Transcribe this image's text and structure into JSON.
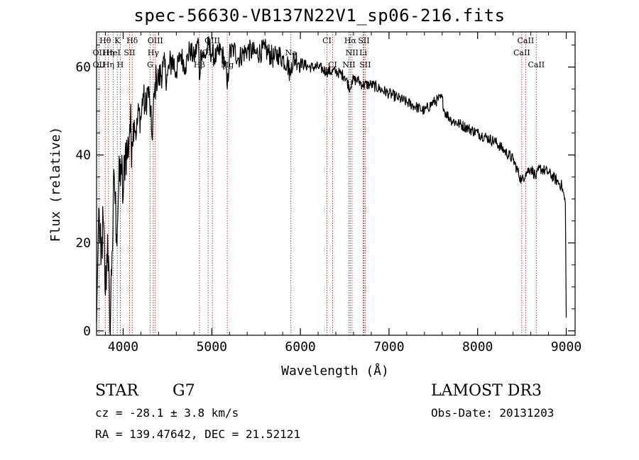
{
  "title": "spec-56630-VB137N22V1_sp06-216.fits",
  "object_class": "STAR",
  "subclass": "G7",
  "survey": "LAMOST DR3",
  "redshift_line": "cz = -28.1 ± 3.8 km/s",
  "obs_date_line": "Obs-Date: 20131203",
  "coord_line": "RA = 139.47642, DEC =  21.52121",
  "colors": {
    "spectrum": "#000000",
    "lines": "#b22222",
    "axis": "#000000"
  },
  "chart_data": {
    "type": "line",
    "title": "spec-56630-VB137N22V1_sp06-216.fits",
    "xlabel": "Wavelength (Å)",
    "ylabel": "Flux (relative)",
    "xlim": [
      3700,
      9100
    ],
    "ylim": [
      -1,
      68
    ],
    "x_ticks": [
      4000,
      5000,
      6000,
      7000,
      8000,
      9000
    ],
    "y_ticks": [
      0,
      20,
      40,
      60
    ],
    "grid": false,
    "series": [
      {
        "name": "flux",
        "points": [
          [
            3700,
            2
          ],
          [
            3725,
            28
          ],
          [
            3750,
            15
          ],
          [
            3775,
            25
          ],
          [
            3800,
            8
          ],
          [
            3825,
            22
          ],
          [
            3850,
            0
          ],
          [
            3875,
            18
          ],
          [
            3900,
            35
          ],
          [
            3925,
            22
          ],
          [
            3950,
            32
          ],
          [
            3975,
            38
          ],
          [
            4000,
            30
          ],
          [
            4025,
            42
          ],
          [
            4050,
            40
          ],
          [
            4075,
            47
          ],
          [
            4100,
            43
          ],
          [
            4125,
            48
          ],
          [
            4150,
            45
          ],
          [
            4175,
            50
          ],
          [
            4200,
            48
          ],
          [
            4225,
            54
          ],
          [
            4250,
            50
          ],
          [
            4275,
            55
          ],
          [
            4300,
            52
          ],
          [
            4325,
            44
          ],
          [
            4350,
            53
          ],
          [
            4375,
            58
          ],
          [
            4400,
            57
          ],
          [
            4450,
            60
          ],
          [
            4500,
            58
          ],
          [
            4550,
            62
          ],
          [
            4600,
            59
          ],
          [
            4650,
            63
          ],
          [
            4700,
            60
          ],
          [
            4750,
            64
          ],
          [
            4800,
            62
          ],
          [
            4850,
            66
          ],
          [
            4860,
            57
          ],
          [
            4880,
            64
          ],
          [
            4920,
            62
          ],
          [
            4960,
            65
          ],
          [
            5000,
            63
          ],
          [
            5050,
            62
          ],
          [
            5100,
            64
          ],
          [
            5150,
            61
          ],
          [
            5175,
            55
          ],
          [
            5200,
            63
          ],
          [
            5250,
            64
          ],
          [
            5300,
            62
          ],
          [
            5400,
            64
          ],
          [
            5500,
            63
          ],
          [
            5600,
            64
          ],
          [
            5700,
            62
          ],
          [
            5750,
            63
          ],
          [
            5800,
            62
          ],
          [
            5850,
            61
          ],
          [
            5890,
            58
          ],
          [
            5900,
            61
          ],
          [
            5950,
            62
          ],
          [
            6000,
            61
          ],
          [
            6100,
            60
          ],
          [
            6200,
            60
          ],
          [
            6300,
            59
          ],
          [
            6400,
            59
          ],
          [
            6500,
            58
          ],
          [
            6563,
            55
          ],
          [
            6580,
            57
          ],
          [
            6650,
            57
          ],
          [
            6700,
            56
          ],
          [
            6800,
            56
          ],
          [
            6900,
            55
          ],
          [
            7000,
            54
          ],
          [
            7100,
            53
          ],
          [
            7200,
            52
          ],
          [
            7300,
            51
          ],
          [
            7400,
            50
          ],
          [
            7500,
            52
          ],
          [
            7600,
            53
          ],
          [
            7625,
            50
          ],
          [
            7700,
            48
          ],
          [
            7800,
            47
          ],
          [
            7900,
            46
          ],
          [
            8000,
            45
          ],
          [
            8100,
            44
          ],
          [
            8200,
            43
          ],
          [
            8300,
            41
          ],
          [
            8400,
            39
          ],
          [
            8498,
            34
          ],
          [
            8542,
            36
          ],
          [
            8600,
            37
          ],
          [
            8662,
            35
          ],
          [
            8700,
            37
          ],
          [
            8800,
            36
          ],
          [
            8900,
            34
          ],
          [
            8950,
            33
          ],
          [
            8990,
            29
          ],
          [
            9000,
            3
          ]
        ]
      }
    ],
    "line_markers": [
      {
        "label": "Hθ",
        "wavelength": 3798,
        "row": 1
      },
      {
        "label": "K",
        "wavelength": 3934,
        "row": 1
      },
      {
        "label": "Hδ",
        "wavelength": 4102,
        "row": 1
      },
      {
        "label": "OIII",
        "wavelength": 4363,
        "row": 1
      },
      {
        "label": "OIII",
        "wavelength": 5007,
        "row": 1
      },
      {
        "label": "CI",
        "wavelength": 6300,
        "row": 1
      },
      {
        "label": "Hα",
        "wavelength": 6563,
        "row": 1
      },
      {
        "label": "SII",
        "wavelength": 6716,
        "row": 1
      },
      {
        "label": "CaII",
        "wavelength": 8542,
        "row": 1
      },
      {
        "label": "OII",
        "wavelength": 3727,
        "row": 2
      },
      {
        "label": "Hη",
        "wavelength": 3835,
        "row": 2
      },
      {
        "label": "HeI",
        "wavelength": 3889,
        "row": 2
      },
      {
        "label": "SII",
        "wavelength": 4072,
        "row": 2
      },
      {
        "label": "Hγ",
        "wavelength": 4340,
        "row": 2
      },
      {
        "label": "OII",
        "wavelength": 4959,
        "row": 2
      },
      {
        "label": "Na",
        "wavelength": 5893,
        "row": 2
      },
      {
        "label": "NII",
        "wavelength": 6583,
        "row": 2
      },
      {
        "label": "Li",
        "wavelength": 6708,
        "row": 2
      },
      {
        "label": "CaII",
        "wavelength": 8498,
        "row": 2
      },
      {
        "label": "OII",
        "wavelength": 3727,
        "row": 3
      },
      {
        "label": "Hη",
        "wavelength": 3835,
        "row": 3
      },
      {
        "label": "H",
        "wavelength": 3968,
        "row": 3
      },
      {
        "label": "G",
        "wavelength": 4304,
        "row": 3
      },
      {
        "label": "Hβ",
        "wavelength": 4861,
        "row": 3
      },
      {
        "label": "Mg",
        "wavelength": 5175,
        "row": 3
      },
      {
        "label": "CI",
        "wavelength": 6364,
        "row": 3
      },
      {
        "label": "NII",
        "wavelength": 6548,
        "row": 3
      },
      {
        "label": "SII",
        "wavelength": 6731,
        "row": 3
      },
      {
        "label": "CaII",
        "wavelength": 8662,
        "row": 3
      }
    ]
  }
}
